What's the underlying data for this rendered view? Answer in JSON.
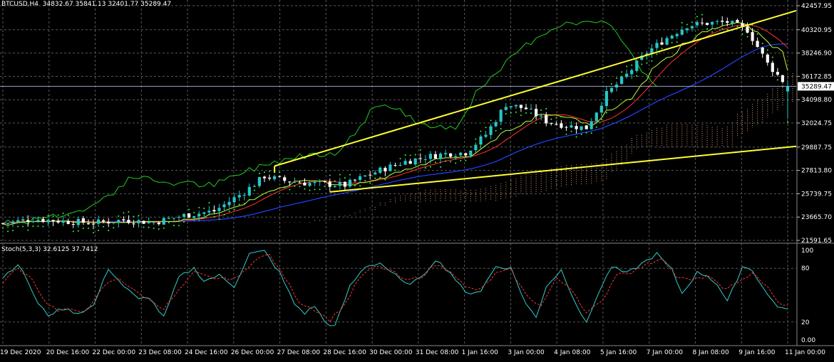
{
  "header": {
    "symbol_line": "BTCUSD,H4  34832.67 35841.13 32401.77 35289.47",
    "stoch_line": "Stoch(5,3,3) 32.6125 37.7412"
  },
  "colors": {
    "background": "#000000",
    "grid": "#5a5a5a",
    "bull_candle": "#26c6c6",
    "bear_candle": "#ffffff",
    "trendline": "#ffff33",
    "chikou": "#22cc22",
    "ma_fast": "#ff3333",
    "ma_slow": "#2244ff",
    "tenkan": "#bbff33",
    "cloud": "#ffb080",
    "stoch_main": "#33cccc",
    "stoch_signal": "#ff3333",
    "current_price_line": "#a0a0d0"
  },
  "chart_data": [
    {
      "type": "candlestick",
      "title": "BTCUSD,H4",
      "ohlc_current": {
        "open": 34832.67,
        "high": 35841.13,
        "low": 32401.77,
        "close": 35289.47
      },
      "price_axis_labels": [
        "42457.95",
        "40320.95",
        "38246.90",
        "36172.85",
        "34098.80",
        "32024.75",
        "29887.75",
        "27813.80",
        "25739.75",
        "23665.70",
        "21591.65"
      ],
      "ylim": [
        21591.65,
        42457.95
      ],
      "current_price_label": "35289.47",
      "time_axis_labels": [
        "19 Dec 2020",
        "20 Dec 16:00",
        "22 Dec 00:00",
        "23 Dec 08:00",
        "24 Dec 16:00",
        "26 Dec 00:00",
        "27 Dec 08:00",
        "28 Dec 16:00",
        "30 Dec 00:00",
        "31 Dec 08:00",
        "1 Jan 16:00",
        "3 Jan 00:00",
        "4 Jan 08:00",
        "5 Jan 16:00",
        "7 Jan 00:00",
        "8 Jan 08:00",
        "9 Jan 16:00",
        "11 Jan 00:00"
      ],
      "x_index_range": [
        0,
        156
      ],
      "candle_count": 157,
      "close_anchors": [
        [
          0,
          23100
        ],
        [
          6,
          23500
        ],
        [
          12,
          23300
        ],
        [
          18,
          23150
        ],
        [
          24,
          23400
        ],
        [
          30,
          23200
        ],
        [
          36,
          23800
        ],
        [
          42,
          24200
        ],
        [
          48,
          25900
        ],
        [
          52,
          27300
        ],
        [
          56,
          26900
        ],
        [
          60,
          26700
        ],
        [
          64,
          26600
        ],
        [
          68,
          26500
        ],
        [
          72,
          27300
        ],
        [
          76,
          28000
        ],
        [
          80,
          28600
        ],
        [
          84,
          29000
        ],
        [
          88,
          29300
        ],
        [
          92,
          29400
        ],
        [
          96,
          31000
        ],
        [
          100,
          33700
        ],
        [
          104,
          33300
        ],
        [
          108,
          32200
        ],
        [
          112,
          31800
        ],
        [
          116,
          31600
        ],
        [
          120,
          34600
        ],
        [
          124,
          36300
        ],
        [
          128,
          38300
        ],
        [
          132,
          39600
        ],
        [
          136,
          40700
        ],
        [
          140,
          40900
        ],
        [
          144,
          41000
        ],
        [
          148,
          40300
        ],
        [
          152,
          37300
        ],
        [
          156,
          35289.47
        ]
      ],
      "trendlines": [
        {
          "name": "upper",
          "from": [
            54,
            28200
          ],
          "to": [
            161,
            42457.95
          ]
        },
        {
          "name": "lower",
          "from": [
            65,
            25900
          ],
          "to": [
            161,
            30100
          ]
        }
      ]
    },
    {
      "type": "line",
      "title": "Stoch(5,3,3)",
      "parameters": [
        5,
        3,
        3
      ],
      "current_values": {
        "main": 32.6125,
        "signal": 37.7412
      },
      "ylim": [
        0,
        100
      ],
      "axis_labels": [
        "100",
        "80",
        "20",
        "0.00"
      ],
      "main_anchors": [
        [
          0,
          70
        ],
        [
          3,
          85
        ],
        [
          5,
          65
        ],
        [
          7,
          40
        ],
        [
          9,
          28
        ],
        [
          12,
          35
        ],
        [
          15,
          30
        ],
        [
          18,
          38
        ],
        [
          21,
          80
        ],
        [
          24,
          60
        ],
        [
          27,
          45
        ],
        [
          29,
          48
        ],
        [
          32,
          25
        ],
        [
          35,
          70
        ],
        [
          38,
          80
        ],
        [
          40,
          66
        ],
        [
          43,
          72
        ],
        [
          46,
          60
        ],
        [
          49,
          96
        ],
        [
          52,
          99
        ],
        [
          55,
          75
        ],
        [
          58,
          40
        ],
        [
          60,
          30
        ],
        [
          62,
          38
        ],
        [
          64,
          20
        ],
        [
          66,
          15
        ],
        [
          69,
          60
        ],
        [
          72,
          82
        ],
        [
          75,
          86
        ],
        [
          78,
          72
        ],
        [
          80,
          62
        ],
        [
          83,
          68
        ],
        [
          86,
          90
        ],
        [
          89,
          75
        ],
        [
          92,
          52
        ],
        [
          95,
          55
        ],
        [
          98,
          82
        ],
        [
          101,
          80
        ],
        [
          104,
          40
        ],
        [
          106,
          25
        ],
        [
          108,
          60
        ],
        [
          111,
          78
        ],
        [
          114,
          40
        ],
        [
          116,
          18
        ],
        [
          118,
          48
        ],
        [
          121,
          82
        ],
        [
          124,
          74
        ],
        [
          127,
          85
        ],
        [
          130,
          96
        ],
        [
          133,
          78
        ],
        [
          135,
          52
        ],
        [
          138,
          75
        ],
        [
          140,
          72
        ],
        [
          142,
          62
        ],
        [
          144,
          42
        ],
        [
          147,
          82
        ],
        [
          149,
          78
        ],
        [
          152,
          50
        ],
        [
          154,
          38
        ],
        [
          156,
          32.61
        ]
      ],
      "signal_anchors": [
        [
          0,
          65
        ],
        [
          3,
          80
        ],
        [
          6,
          68
        ],
        [
          8,
          45
        ],
        [
          11,
          32
        ],
        [
          14,
          34
        ],
        [
          17,
          33
        ],
        [
          20,
          60
        ],
        [
          23,
          70
        ],
        [
          26,
          55
        ],
        [
          29,
          46
        ],
        [
          32,
          35
        ],
        [
          35,
          55
        ],
        [
          38,
          75
        ],
        [
          41,
          70
        ],
        [
          44,
          68
        ],
        [
          47,
          70
        ],
        [
          50,
          90
        ],
        [
          53,
          95
        ],
        [
          56,
          70
        ],
        [
          59,
          42
        ],
        [
          62,
          34
        ],
        [
          65,
          22
        ],
        [
          68,
          40
        ],
        [
          71,
          70
        ],
        [
          74,
          82
        ],
        [
          77,
          78
        ],
        [
          80,
          66
        ],
        [
          83,
          70
        ],
        [
          86,
          84
        ],
        [
          89,
          78
        ],
        [
          92,
          58
        ],
        [
          95,
          56
        ],
        [
          98,
          74
        ],
        [
          101,
          78
        ],
        [
          104,
          50
        ],
        [
          107,
          38
        ],
        [
          110,
          68
        ],
        [
          113,
          58
        ],
        [
          116,
          30
        ],
        [
          119,
          42
        ],
        [
          122,
          74
        ],
        [
          125,
          76
        ],
        [
          128,
          84
        ],
        [
          131,
          92
        ],
        [
          134,
          70
        ],
        [
          137,
          66
        ],
        [
          140,
          72
        ],
        [
          143,
          58
        ],
        [
          146,
          62
        ],
        [
          149,
          76
        ],
        [
          152,
          58
        ],
        [
          154,
          42
        ],
        [
          156,
          37.74
        ]
      ]
    }
  ]
}
